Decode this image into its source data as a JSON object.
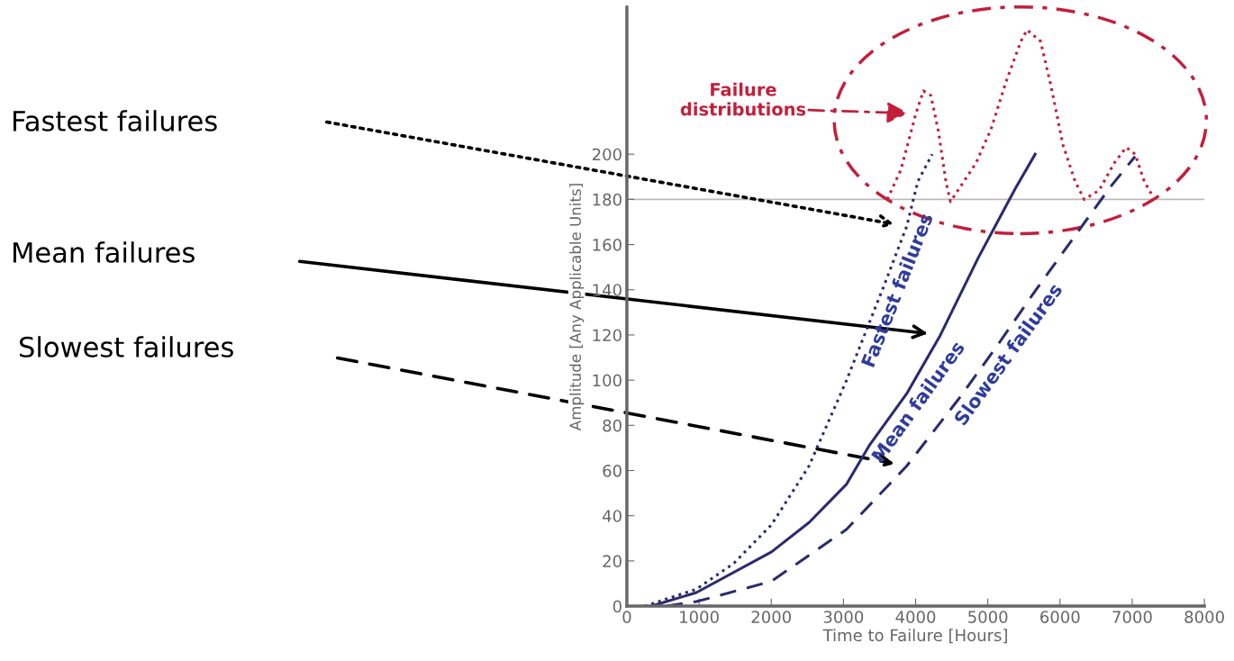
{
  "chart_data": {
    "type": "line",
    "xlabel": "Time to Failure [Hours]",
    "ylabel": "Amplitude [Any Applicable Units]",
    "xlim": [
      0,
      8000
    ],
    "xticks": [
      0,
      1000,
      2000,
      3000,
      4000,
      5000,
      6000,
      7000,
      8000
    ],
    "ylim": [
      0,
      265
    ],
    "yticks": [
      0,
      20,
      40,
      60,
      80,
      100,
      120,
      140,
      160,
      180,
      200
    ],
    "grid": false,
    "legend": false,
    "marker": "none",
    "series": [
      {
        "name": "Fastest failures",
        "color": "#2b2b70",
        "line_style": "dotted",
        "x": [
          245,
          963,
          1483,
          2003,
          2523,
          3044,
          3564,
          3876,
          4032,
          4230
        ],
        "values": [
          0,
          7.5,
          19,
          36,
          62,
          100,
          142,
          168,
          188,
          200
        ]
      },
      {
        "name": "Mean failures",
        "color": "#2b2b70",
        "line_style": "solid",
        "x": [
          338,
          963,
          2003,
          2523,
          3044,
          3356,
          3876,
          4344,
          4865,
          5385,
          5656
        ],
        "values": [
          0,
          6,
          24,
          37,
          54,
          71,
          94,
          120,
          154,
          185,
          200
        ]
      },
      {
        "name": "Slowest failures",
        "color": "#2b2b70",
        "line_style": "dashed",
        "x": [
          546,
          963,
          2003,
          3044,
          3876,
          4604,
          5125,
          5645,
          6165,
          6686,
          7040
        ],
        "values": [
          0,
          2,
          11,
          34,
          62,
          92,
          115,
          139,
          162,
          185,
          199
        ]
      },
      {
        "color": "#c41e3a",
        "line_style": "dotted",
        "x": [
          3608,
          3795,
          4004,
          4107,
          4211,
          4316,
          4419,
          4482,
          4628,
          4836,
          5044,
          5252,
          5459,
          5543,
          5730,
          5876,
          6042,
          6209,
          6334,
          6542,
          6750,
          6916,
          7041,
          7166,
          7291
        ],
        "values": [
          180,
          193,
          218,
          228,
          226,
          210,
          188,
          179,
          186,
          196,
          211,
          232,
          250,
          255,
          250,
          230,
          204,
          188,
          180,
          184,
          196,
          203,
          200,
          188,
          181
        ]
      }
    ],
    "ref_lines": [
      {
        "axis": "y",
        "value": 180,
        "color": "#bbbbbb",
        "line_style": "solid"
      }
    ],
    "annotations": [
      "Fastest failures",
      "Mean failures",
      "Slowest failures",
      "Failure\ndistributions"
    ]
  }
}
